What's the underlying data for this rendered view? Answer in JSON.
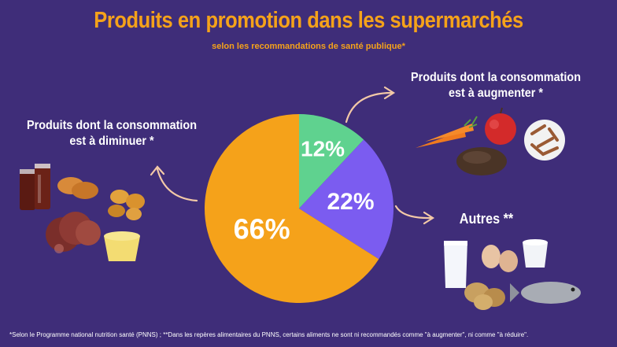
{
  "header": {
    "title": "Produits en promotion dans les supermarchés",
    "subtitle": "selon les recommandations de santé publique*"
  },
  "labels": {
    "reduce": "Produits dont la consommation est à diminuer *",
    "increase": "Produits dont la consommation est à augmenter *",
    "other": "Autres **"
  },
  "footnote": "*Selon le Programme national nutrition santé (PNNS) ; **Dans les repères alimentaires du PNNS, certains aliments ne sont ni recommandés comme \"à augmenter\", ni comme \"à réduire\".",
  "chart_data": {
    "type": "pie",
    "slices": [
      {
        "label": "12%",
        "value": 12,
        "color": "#5fd28f"
      },
      {
        "label": "22%",
        "value": 22,
        "color": "#7b5cf0"
      },
      {
        "label": "66%",
        "value": 66,
        "color": "#f5a21a"
      }
    ]
  },
  "icons": [
    "soda-icon",
    "madeleine-icon",
    "nugget-icon",
    "sausage-icon",
    "dessert-cup-icon",
    "carrot-icon",
    "apple-icon",
    "pasta-icon",
    "bread-icon",
    "milk-icon",
    "egg-icon",
    "yogurt-icon",
    "potato-icon",
    "fish-icon"
  ],
  "colors": {
    "background": "#3f2d79",
    "accent": "#f5a21a"
  }
}
